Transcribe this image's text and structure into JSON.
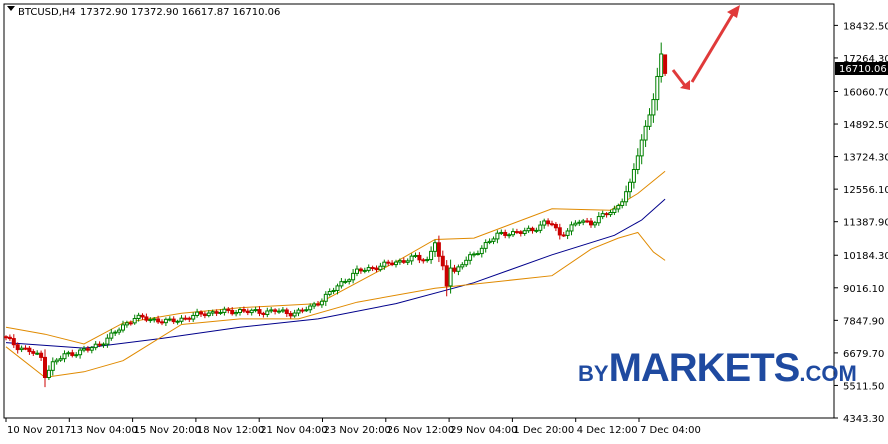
{
  "chart_data": {
    "type": "candlestick",
    "symbol_label": "BTCUSD,H4",
    "ohlc_label": "17372.90 17372.90 16617.87 16710.06",
    "current_price_label": "16710.06",
    "ylim": [
      4343.3,
      19200
    ],
    "y_ticks": [
      "18432.50",
      "17264.30",
      "16060.70",
      "14892.50",
      "13724.30",
      "12556.10",
      "11387.90",
      "10184.30",
      "9016.10",
      "7847.90",
      "6679.70",
      "5511.50",
      "4343.30"
    ],
    "x_ticks": [
      "10 Nov 2017",
      "13 Nov 04:00",
      "15 Nov 20:00",
      "18 Nov 12:00",
      "21 Nov 04:00",
      "23 Nov 20:00",
      "26 Nov 12:00",
      "29 Nov 04:00",
      "1 Dec 20:00",
      "4 Dec 12:00",
      "7 Dec 04:00"
    ],
    "close_anchors": [
      [
        0,
        7200
      ],
      [
        3,
        6900
      ],
      [
        6,
        6750
      ],
      [
        9,
        6500
      ],
      [
        10,
        5900
      ],
      [
        12,
        6300
      ],
      [
        15,
        6600
      ],
      [
        18,
        6700
      ],
      [
        21,
        6800
      ],
      [
        24,
        7000
      ],
      [
        27,
        7300
      ],
      [
        30,
        7650
      ],
      [
        33,
        7950
      ],
      [
        36,
        7900
      ],
      [
        39,
        7850
      ],
      [
        42,
        7800
      ],
      [
        45,
        7900
      ],
      [
        48,
        8000
      ],
      [
        51,
        8100
      ],
      [
        54,
        8150
      ],
      [
        57,
        8150
      ],
      [
        60,
        8200
      ],
      [
        63,
        8150
      ],
      [
        66,
        8150
      ],
      [
        69,
        8200
      ],
      [
        72,
        8100
      ],
      [
        75,
        8150
      ],
      [
        78,
        8300
      ],
      [
        81,
        8600
      ],
      [
        84,
        8950
      ],
      [
        87,
        9300
      ],
      [
        90,
        9600
      ],
      [
        93,
        9700
      ],
      [
        96,
        9800
      ],
      [
        99,
        9900
      ],
      [
        102,
        10000
      ],
      [
        105,
        10100
      ],
      [
        108,
        10000
      ],
      [
        110,
        10700
      ],
      [
        111,
        10100
      ],
      [
        112,
        9700
      ],
      [
        113,
        9100
      ],
      [
        114,
        9800
      ],
      [
        115,
        9600
      ],
      [
        117,
        9900
      ],
      [
        120,
        10200
      ],
      [
        123,
        10600
      ],
      [
        126,
        10900
      ],
      [
        129,
        11000
      ],
      [
        132,
        11000
      ],
      [
        135,
        11100
      ],
      [
        138,
        11350
      ],
      [
        140,
        11300
      ],
      [
        142,
        10900
      ],
      [
        144,
        11100
      ],
      [
        147,
        11400
      ],
      [
        150,
        11350
      ],
      [
        153,
        11600
      ],
      [
        156,
        11800
      ],
      [
        158,
        12200
      ],
      [
        160,
        12700
      ],
      [
        162,
        13800
      ],
      [
        164,
        14800
      ],
      [
        166,
        15800
      ],
      [
        167,
        16500
      ],
      [
        168,
        17350
      ],
      [
        169,
        16710
      ]
    ],
    "series": [
      {
        "name": "",
        "color": "#00008b",
        "values": [
          [
            0,
            7050
          ],
          [
            20,
            6850
          ],
          [
            40,
            7200
          ],
          [
            60,
            7600
          ],
          [
            80,
            7900
          ],
          [
            100,
            8450
          ],
          [
            120,
            9200
          ],
          [
            140,
            10200
          ],
          [
            156,
            10900
          ],
          [
            163,
            11450
          ],
          [
            169,
            12200
          ]
        ]
      },
      {
        "name": "",
        "color": "#e08a00",
        "values": [
          [
            0,
            7600
          ],
          [
            10,
            7350
          ],
          [
            20,
            7000
          ],
          [
            30,
            7750
          ],
          [
            45,
            8100
          ],
          [
            60,
            8300
          ],
          [
            80,
            8450
          ],
          [
            100,
            9950
          ],
          [
            110,
            10750
          ],
          [
            120,
            10800
          ],
          [
            140,
            11850
          ],
          [
            155,
            11800
          ],
          [
            162,
            12400
          ],
          [
            169,
            13200
          ]
        ]
      },
      {
        "name": "",
        "color": "#e08a00",
        "values": [
          [
            0,
            6900
          ],
          [
            10,
            5800
          ],
          [
            20,
            6000
          ],
          [
            30,
            6400
          ],
          [
            45,
            7700
          ],
          [
            60,
            7900
          ],
          [
            75,
            7900
          ],
          [
            90,
            8500
          ],
          [
            110,
            9000
          ],
          [
            120,
            9150
          ],
          [
            140,
            9450
          ],
          [
            150,
            10400
          ],
          [
            157,
            10800
          ],
          [
            162,
            11000
          ],
          [
            166,
            10300
          ],
          [
            169,
            10000
          ]
        ]
      }
    ],
    "colors": {
      "bull": "#008000",
      "bear": "#cc0000",
      "arrow": "#e03a3a",
      "price_box": "#000000"
    }
  },
  "watermark": {
    "by": "BY",
    "markets": "MARKETS",
    "com": ".COM"
  }
}
